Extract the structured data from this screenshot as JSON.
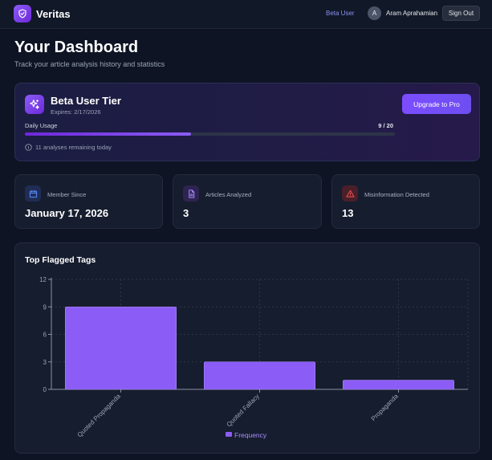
{
  "header": {
    "brand": "Veritas",
    "beta_link": "Beta User",
    "avatar_initial": "A",
    "username": "Aram Aprahamian",
    "signout_label": "Sign Out",
    "logo_icon": "shield-icon"
  },
  "page": {
    "title": "Your Dashboard",
    "subtitle": "Track your article analysis history and statistics"
  },
  "tier": {
    "icon": "sparkles-icon",
    "title": "Beta User Tier",
    "expiry": "Expires: 2/17/2026",
    "upgrade_label": "Upgrade to Pro",
    "usage_label": "Daily Usage",
    "usage_count": "9 / 20",
    "usage_fraction": 0.45,
    "remaining": "11 analyses remaining today"
  },
  "stats": [
    {
      "label": "Member Since",
      "value": "January 17, 2026",
      "icon": "calendar-icon",
      "color": "#4f7cf7"
    },
    {
      "label": "Articles Analyzed",
      "value": "3",
      "icon": "document-icon",
      "color": "#a78bfa"
    },
    {
      "label": "Misinformation Detected",
      "value": "13",
      "icon": "warning-icon",
      "color": "#f05252"
    }
  ],
  "chart": {
    "title": "Top Flagged Tags"
  },
  "chart_data": {
    "type": "bar",
    "title": "Top Flagged Tags",
    "categories": [
      "Quoted Propaganda",
      "Quoted Fallacy",
      "Propaganda"
    ],
    "series": [
      {
        "name": "Frequency",
        "values": [
          9,
          3,
          1
        ],
        "color": "#8b5cf6"
      }
    ],
    "ylim": [
      0,
      12
    ],
    "yticks": [
      0,
      3,
      6,
      9,
      12
    ],
    "grid": true,
    "legend": "bottom-center"
  }
}
